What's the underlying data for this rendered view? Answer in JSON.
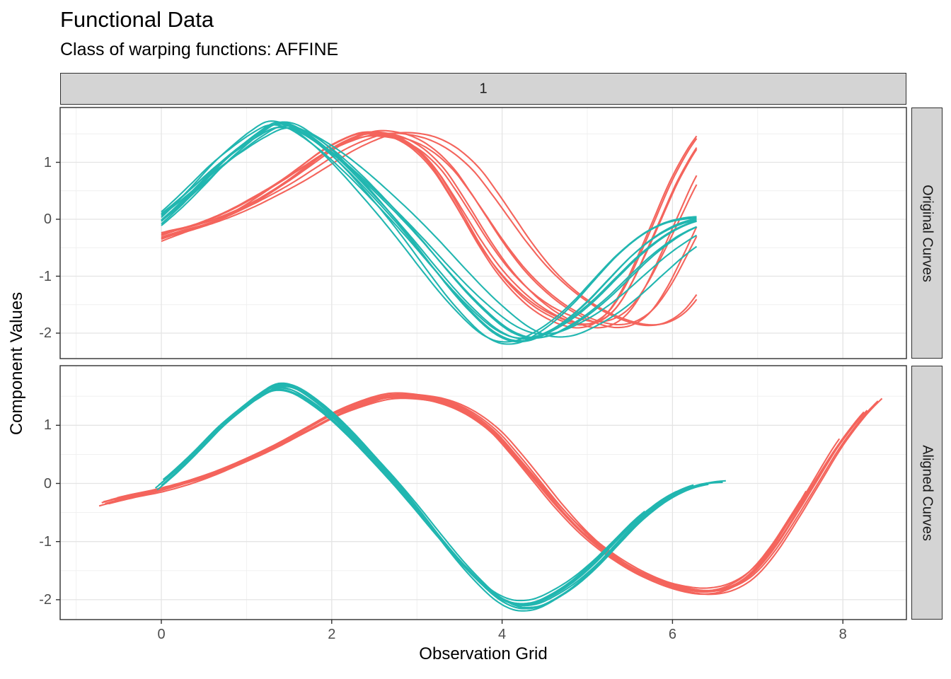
{
  "chart_data": {
    "type": "line",
    "title": "Functional Data",
    "subtitle": "Class of warping functions: AFFINE",
    "xlabel": "Observation Grid",
    "ylabel": "Component Values",
    "facet_col_label": "1",
    "facet_rows": [
      "Original Curves",
      "Aligned Curves"
    ],
    "x_ticks": [
      0,
      2,
      4,
      6,
      8
    ],
    "x_minor": [
      -1,
      1,
      3,
      5,
      7
    ],
    "y_ticks": [
      1,
      0,
      -1,
      -2
    ],
    "y_minor": [
      1.5,
      0.5,
      -0.5,
      -1.5
    ],
    "xlim": [
      -1.19,
      8.75
    ],
    "ylim": [
      -2.44,
      1.96
    ],
    "original_grid": {
      "start": 0,
      "end": 6.2832
    },
    "colors": {
      "cluster1": "#F4645C",
      "cluster2": "#21B6B0",
      "grid_major": "#E4E4E4",
      "grid_minor": "#EFEFEF",
      "panel_border": "#2F2F2F",
      "strip_fill": "#D4D4D4",
      "tick_text": "#4D4D4D"
    },
    "clusters": [
      {
        "id": "cluster-1",
        "color": "#F4645C",
        "n_curves": 10,
        "base_curve": [
          [
            -0.8,
            -0.4
          ],
          [
            -0.55,
            -0.3
          ],
          [
            -0.3,
            -0.21
          ],
          [
            0.0,
            -0.12
          ],
          [
            0.35,
            0.02
          ],
          [
            0.7,
            0.2
          ],
          [
            1.05,
            0.42
          ],
          [
            1.4,
            0.66
          ],
          [
            1.75,
            0.93
          ],
          [
            2.1,
            1.2
          ],
          [
            2.45,
            1.4
          ],
          [
            2.75,
            1.51
          ],
          [
            3.05,
            1.5
          ],
          [
            3.35,
            1.41
          ],
          [
            3.65,
            1.21
          ],
          [
            3.95,
            0.88
          ],
          [
            4.2,
            0.48
          ],
          [
            4.45,
            0.04
          ],
          [
            4.7,
            -0.4
          ],
          [
            5.0,
            -0.86
          ],
          [
            5.3,
            -1.22
          ],
          [
            5.6,
            -1.5
          ],
          [
            5.9,
            -1.7
          ],
          [
            6.2,
            -1.83
          ],
          [
            6.45,
            -1.87
          ],
          [
            6.7,
            -1.8
          ],
          [
            6.95,
            -1.58
          ],
          [
            7.2,
            -1.16
          ],
          [
            7.45,
            -0.6
          ],
          [
            7.7,
            0.0
          ],
          [
            7.95,
            0.6
          ],
          [
            8.15,
            1.0
          ],
          [
            8.3,
            1.26
          ],
          [
            8.48,
            1.52
          ]
        ],
        "warps": [
          [
            1.455,
            -0.73,
            0.0,
            1.0
          ],
          [
            1.43,
            -0.7,
            0.02,
            0.98
          ],
          [
            1.445,
            -0.62,
            -0.03,
            1.02
          ],
          [
            1.4,
            -0.55,
            0.04,
            0.99
          ],
          [
            1.375,
            -0.68,
            0.06,
            1.01
          ],
          [
            1.34,
            -0.5,
            0.05,
            0.97
          ],
          [
            1.3,
            -0.6,
            0.08,
            1.015
          ],
          [
            1.265,
            -0.45,
            0.07,
            0.985
          ],
          [
            1.225,
            -0.66,
            0.03,
            1.0
          ],
          [
            1.205,
            -0.52,
            0.06,
            0.99
          ]
        ]
      },
      {
        "id": "cluster-2",
        "color": "#21B6B0",
        "n_curves": 10,
        "base_curve": [
          [
            -0.1,
            -0.14
          ],
          [
            0.0,
            -0.02
          ],
          [
            0.2,
            0.24
          ],
          [
            0.45,
            0.6
          ],
          [
            0.7,
            0.97
          ],
          [
            0.95,
            1.28
          ],
          [
            1.15,
            1.5
          ],
          [
            1.35,
            1.66
          ],
          [
            1.55,
            1.63
          ],
          [
            1.75,
            1.46
          ],
          [
            2.0,
            1.17
          ],
          [
            2.25,
            0.82
          ],
          [
            2.5,
            0.43
          ],
          [
            2.75,
            0.02
          ],
          [
            3.0,
            -0.42
          ],
          [
            3.25,
            -0.88
          ],
          [
            3.5,
            -1.32
          ],
          [
            3.72,
            -1.66
          ],
          [
            3.9,
            -1.9
          ],
          [
            4.05,
            -2.04
          ],
          [
            4.2,
            -2.11
          ],
          [
            4.4,
            -2.09
          ],
          [
            4.6,
            -1.96
          ],
          [
            4.85,
            -1.72
          ],
          [
            5.1,
            -1.4
          ],
          [
            5.35,
            -1.02
          ],
          [
            5.6,
            -0.65
          ],
          [
            5.85,
            -0.35
          ],
          [
            6.05,
            -0.17
          ],
          [
            6.25,
            -0.05
          ],
          [
            6.45,
            0.01
          ],
          [
            6.6,
            0.03
          ],
          [
            6.78,
            0.03
          ]
        ],
        "warps": [
          [
            1.0,
            0.0,
            0.0,
            1.0
          ],
          [
            0.955,
            0.05,
            0.02,
            0.975
          ],
          [
            1.03,
            -0.05,
            -0.02,
            1.02
          ],
          [
            0.98,
            0.09,
            0.03,
            0.99
          ],
          [
            1.06,
            -0.07,
            0.01,
            1.03
          ],
          [
            0.925,
            0.07,
            0.04,
            0.96
          ],
          [
            1.015,
            0.03,
            -0.03,
            1.005
          ],
          [
            0.975,
            -0.03,
            0.02,
            0.985
          ],
          [
            1.045,
            0.06,
            -0.01,
            1.025
          ],
          [
            0.9,
            0.02,
            0.035,
            0.97
          ]
        ]
      }
    ]
  }
}
